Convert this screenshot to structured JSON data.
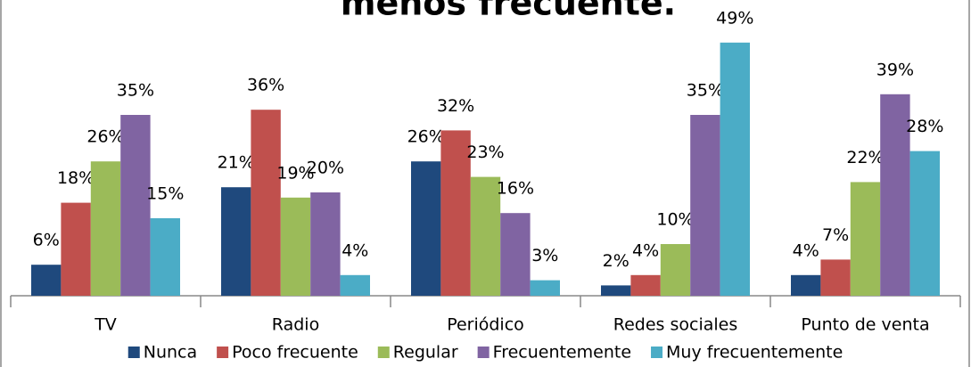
{
  "chart_data": {
    "type": "bar",
    "title": "menos frecuente.",
    "categories": [
      "TV",
      "Radio",
      "Periódico",
      "Redes sociales",
      "Punto de venta"
    ],
    "series": [
      {
        "name": "Nunca",
        "color": "#1F497D",
        "values": [
          6,
          21,
          26,
          2,
          4
        ],
        "value_labels": [
          "6%",
          "21%",
          "26%",
          "2%",
          "4%"
        ]
      },
      {
        "name": "Poco frecuente",
        "color": "#C0504D",
        "values": [
          18,
          36,
          32,
          4,
          7
        ],
        "value_labels": [
          "18%",
          "36%",
          "32%",
          "4%",
          "7%"
        ]
      },
      {
        "name": "Regular",
        "color": "#9BBB59",
        "values": [
          26,
          19,
          23,
          10,
          22
        ],
        "value_labels": [
          "26%",
          "19%",
          "23%",
          "10%",
          "22%"
        ]
      },
      {
        "name": "Frecuentemente",
        "color": "#8064A2",
        "values": [
          35,
          20,
          16,
          35,
          39
        ],
        "value_labels": [
          "35%",
          "20%",
          "16%",
          "35%",
          "39%"
        ]
      },
      {
        "name": "Muy frecuentemente",
        "color": "#4BACC6",
        "values": [
          15,
          4,
          3,
          49,
          28
        ],
        "value_labels": [
          "15%",
          "4%",
          "3%",
          "49%",
          "28%"
        ]
      }
    ],
    "ylim": [
      0,
      55
    ],
    "legend": "bottom"
  }
}
